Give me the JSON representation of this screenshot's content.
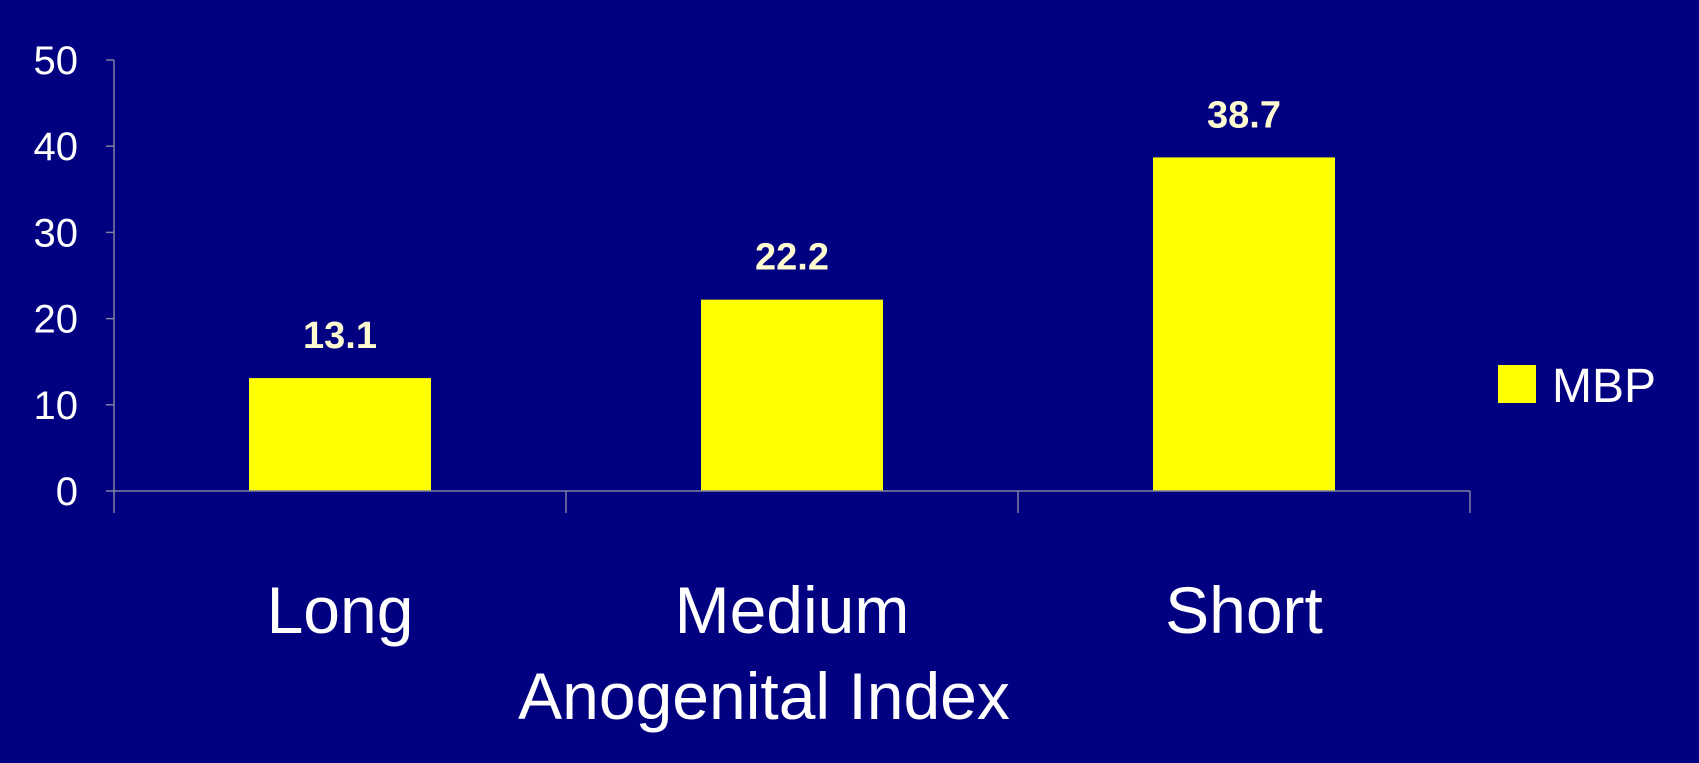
{
  "colors": {
    "background": "#000080",
    "bar": "#ffff00",
    "axis": "#8080a0",
    "text": "#ffffff",
    "data_label": "#fffbd0"
  },
  "chart_data": {
    "type": "bar",
    "categories": [
      "Long",
      "Medium",
      "Short"
    ],
    "series": [
      {
        "name": "MBP",
        "values": [
          13.1,
          22.2,
          38.7
        ]
      }
    ],
    "data_labels": [
      "13.1",
      "22.2",
      "38.7"
    ],
    "title": "",
    "xlabel": "Anogenital Index",
    "ylabel": "",
    "ylim": [
      0,
      50
    ],
    "yticks": [
      0,
      10,
      20,
      30,
      40,
      50
    ],
    "grid": false,
    "legend": "right"
  }
}
